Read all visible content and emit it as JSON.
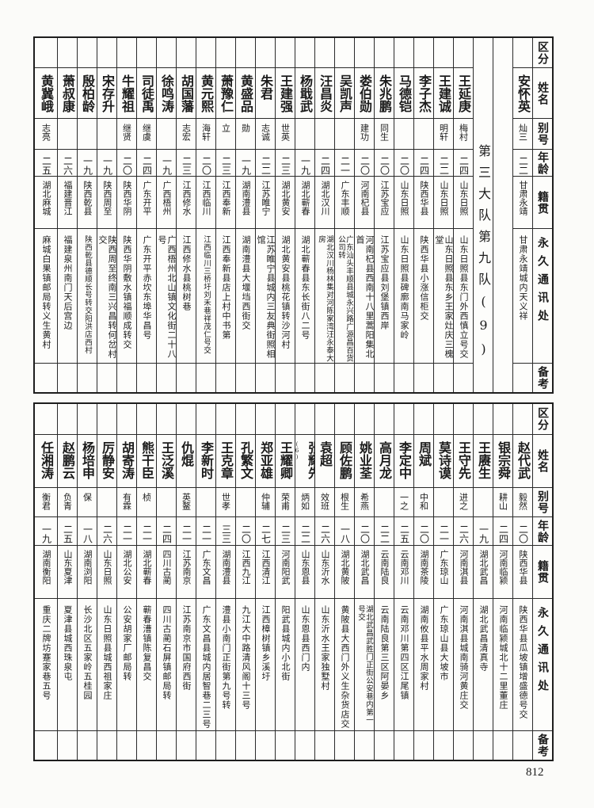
{
  "headers": [
    "区分",
    "姓名",
    "别号",
    "年龄",
    "籍贯",
    "永久通讯处",
    "备考"
  ],
  "top_table": {
    "section_label": "第三大队第九队(9)",
    "rows": [
      {
        "name": "安怀英",
        "alias": "灿三",
        "age": "二二",
        "native": "甘肃永靖",
        "address": "甘肃永靖城内天义祥",
        "remark": ""
      },
      {
        "name": "王延庚",
        "alias": "梅村",
        "age": "二四",
        "native": "山东日照",
        "address": "山东日照县东门外西慎立号交",
        "remark": ""
      },
      {
        "name": "王建诚",
        "alias": "明轩",
        "age": "二二",
        "native": "山东日照",
        "address": "山东日照县东乡王家灶庆三槐堂",
        "remark": ""
      },
      {
        "name": "李子杰",
        "alias": "",
        "age": "二四",
        "native": "陕西华县",
        "address": "陕西华县小涨信柜交",
        "remark": ""
      },
      {
        "name": "马德铠",
        "alias": "",
        "age": "二〇",
        "native": "山东日照",
        "address": "山东日照县碑廓南马家岭",
        "remark": ""
      },
      {
        "name": "朱兆鹏",
        "alias": "同生",
        "age": "二〇",
        "native": "江苏宝应",
        "address": "江苏宝应县刘堡镇西岸",
        "remark": ""
      },
      {
        "name": "娄伯勋",
        "alias": "建功",
        "age": "二〇",
        "native": "河南杞县",
        "address": "河南杞县西南十八里蒿阳集北首",
        "remark": ""
      },
      {
        "name": "吴凯声",
        "alias": "",
        "age": "二一",
        "native": "广东丰顺",
        "address": "广东汕头丰顺县城永兴路广源昌百货公司转",
        "remark": ""
      },
      {
        "name": "汪昌炎",
        "alias": "",
        "age": "二四",
        "native": "湖北汉川",
        "address": "湖北汉川杨林集对河陈家湾汪永泰大房",
        "remark": ""
      },
      {
        "name": "杨戢武",
        "alias": "",
        "age": "一九",
        "native": "湖北蕲春",
        "address": "湖北蕲春县东长街八二号",
        "remark": ""
      },
      {
        "name": "王建强",
        "alias": "世英",
        "age": "二三",
        "native": "湖北黄安",
        "address": "湖北黄安县桃花镇转沙河村",
        "remark": ""
      },
      {
        "name": "朱君",
        "alias": "志诚",
        "age": "二二",
        "native": "江苏睢宁",
        "address": "江苏睢宁县城内三友典街照相馆",
        "remark": ""
      },
      {
        "name": "黄盛品",
        "alias": "勋",
        "age": "一九",
        "native": "湖南澧县",
        "address": "湖南澧县大堰垱西街交",
        "remark": ""
      },
      {
        "name": "萧豫仁",
        "alias": "立",
        "age": "二三",
        "native": "江西奉新",
        "address": "江西奉新县店上村中书第",
        "remark": ""
      },
      {
        "name": "黄元熙",
        "alias": "海轩",
        "age": "二〇",
        "native": "江西临川",
        "address": "江西临川三桥圩刘禾巷祥茂仁号交",
        "remark": ""
      },
      {
        "name": "胡国藩",
        "alias": "志宏",
        "age": "二三",
        "native": "江西修水",
        "address": "江西修水县桃树巷",
        "remark": ""
      },
      {
        "name": "徐鸣涛",
        "alias": "",
        "age": "一九",
        "native": "广西梧州",
        "address": "广西梧州北山镇文化街二十八号",
        "remark": ""
      },
      {
        "name": "司徒禹",
        "alias": "继虞",
        "age": "二四",
        "native": "广东开平",
        "address": "广东开平赤坎东埠华昌号",
        "remark": ""
      },
      {
        "name": "牛耀祖",
        "alias": "继贤",
        "age": "二〇",
        "native": "陕西华阴",
        "address": "陕西华阴敷水镇福顺成转交",
        "remark": ""
      },
      {
        "name": "宋存升",
        "alias": "",
        "age": "一九",
        "native": "陕西周至",
        "address": "陕西周至终南三兴昌转何岔村交",
        "remark": ""
      },
      {
        "name": "殷柏龄",
        "alias": "",
        "age": "一九",
        "native": "陕西乾县",
        "address": "陕西乾县德顺长号转交阳洪店西村",
        "remark": ""
      },
      {
        "name": "萧叔康",
        "alias": "",
        "age": "二六",
        "native": "福建晋江",
        "address": "福建泉州南门天后宫边",
        "remark": ""
      },
      {
        "name": "黄冀峨",
        "alias": "志亮",
        "age": "二五",
        "native": "湖北麻城",
        "address": "麻城白果镇邮局转义生黄村",
        "remark": ""
      }
    ]
  },
  "bottom_table": {
    "rows": [
      {
        "name": "赵代武",
        "alias": "毅然",
        "age": "二〇",
        "native": "陕西华县",
        "address": "陕西华县瓜坡镇增盛德号交",
        "remark": ""
      },
      {
        "name": "银宗舜",
        "alias": "耕山",
        "age": "二四",
        "native": "河南临颍",
        "address": "河南临颍城北十二里董庄",
        "remark": ""
      },
      {
        "name": "王赓生",
        "alias": "",
        "age": "一九",
        "native": "湖北武昌",
        "address": "湖北武昌清真寺",
        "remark": ""
      },
      {
        "name": "王守先",
        "alias": "进之",
        "age": "二六",
        "native": "河南淇县",
        "address": "河南淇县城南骑河黄庄交",
        "remark": ""
      },
      {
        "name": "莫诗谟",
        "alias": "",
        "age": "二一",
        "native": "广东琼山",
        "address": "广东琼山县大坡市",
        "remark": ""
      },
      {
        "name": "周斌",
        "alias": "中和",
        "age": "二〇",
        "native": "湖南茶陵",
        "address": "湖南攸县平水周家村",
        "remark": ""
      },
      {
        "name": "李定中",
        "alias": "一之",
        "age": "二五",
        "native": "云南邓川",
        "address": "云南邓川第四区江尾镇",
        "remark": ""
      },
      {
        "name": "高月龙",
        "alias": "",
        "age": "二二",
        "native": "云南陆良",
        "address": "云南陆良第三区阿晏乡",
        "remark": ""
      },
      {
        "name": "姚业荃",
        "alias": "希燕",
        "age": "二〇",
        "native": "湖北武昌",
        "address": "湖北武昌武胜门正街公安巷内第一号交",
        "remark": ""
      },
      {
        "name": "顾佐鹏",
        "alias": "根生",
        "age": "一八",
        "native": "湖北黄陂",
        "address": "黄陂县大西门外义生杂货店交",
        "remark": ""
      },
      {
        "name": "袁超",
        "alias": "效班",
        "age": "二六",
        "native": "山东沂水",
        "address": "山东沂水王家独墅村",
        "remark": ""
      },
      {
        "name": "张耀先",
        "note": "(6)",
        "alias": "炳如",
        "age": "二二",
        "native": "山东恩县",
        "address": "山东恩县西门内",
        "remark": ""
      },
      {
        "name": "王耀卿",
        "alias": "荣甫",
        "age": "二三",
        "native": "河南阳武",
        "address": "阳武县城内小北街",
        "remark": ""
      },
      {
        "name": "郑亚雄",
        "alias": "仲辅",
        "age": "二七",
        "native": "江西清江",
        "address": "江西樟树镇乡溪圩",
        "remark": ""
      },
      {
        "name": "孔繁文",
        "alias": "",
        "age": "二〇",
        "native": "江西九江",
        "address": "九江大中路清风阁十三号",
        "remark": ""
      },
      {
        "name": "王克章",
        "alias": "世孝",
        "age": "三三",
        "native": "湖南澧县",
        "address": "澧县小南门正街第九号转",
        "remark": ""
      },
      {
        "name": "李新时",
        "alias": "",
        "age": "二一",
        "native": "广东文昌",
        "address": "广东文昌县城内居智巷二三号",
        "remark": ""
      },
      {
        "name": "仇焜",
        "alias": "英鳌",
        "age": "二一",
        "native": "江苏南京",
        "address": "江苏南京市国府西街",
        "remark": ""
      },
      {
        "name": "王泛溪",
        "alias": "",
        "age": "二四",
        "native": "四川古蔺",
        "address": "四川古蔺石屏镇邮局转",
        "remark": ""
      },
      {
        "name": "熊干臣",
        "alias": "桢",
        "age": "二一",
        "native": "湖北蕲春",
        "address": "蕲春漕镇陈复昌交",
        "remark": ""
      },
      {
        "name": "胡寄涛",
        "alias": "有霖",
        "age": "二一",
        "native": "湖北公安",
        "address": "公安胡家厂邮局转",
        "remark": ""
      },
      {
        "name": "厉静安",
        "alias": "",
        "age": "二六",
        "native": "山东日照",
        "address": "山东日照县城西祖家庄",
        "remark": ""
      },
      {
        "name": "杨培申",
        "alias": "保",
        "age": "一八",
        "native": "湖南浏阳",
        "address": "长沙北区五家岭五桂园",
        "remark": ""
      },
      {
        "name": "赵鹏云",
        "alias": "负青",
        "age": "二五",
        "native": "山东夏津",
        "address": "夏津县城西珠泉屯",
        "remark": ""
      },
      {
        "name": "任湘涛",
        "alias": "衡君",
        "age": "一九",
        "native": "湖南衡阳",
        "address": "重庆二牌坊蹇家巷五号",
        "remark": ""
      }
    ]
  },
  "page_number": "812"
}
